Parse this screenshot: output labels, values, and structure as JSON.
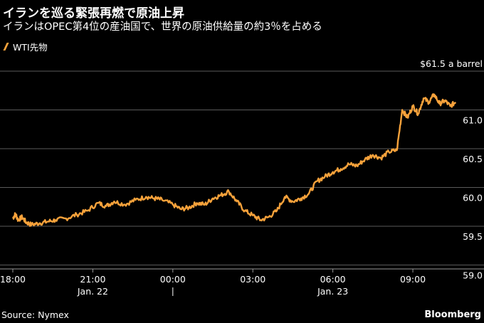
{
  "header": {
    "title": "イランを巡る緊張再燃で原油上昇",
    "subtitle": "イランはOPEC第4位の産油国で、世界の原油供給量の約3％を占める"
  },
  "legend": {
    "label": "WTI先物"
  },
  "footer": {
    "source": "Source: Nymex",
    "brand": "Bloomberg"
  },
  "colors": {
    "line": "#f7a23b",
    "grid": "#5a5a5a",
    "background": "#000000"
  },
  "chart_data": {
    "type": "line",
    "title": "イランを巡る緊張再燃で原油上昇",
    "ylabel": "",
    "unit_label": "$61.5 a barrel",
    "ylim": [
      58.95,
      61.5
    ],
    "yticks": [
      59.0,
      59.5,
      60.0,
      60.5,
      61.0
    ],
    "ytick_labels": [
      "59.0",
      "59.5",
      "60.0",
      "60.5",
      "61.0"
    ],
    "xlim": [
      0,
      16.6
    ],
    "xticks": [
      0,
      3,
      6,
      9,
      12,
      15
    ],
    "xtick_labels": [
      "18:00",
      "21:00",
      "00:00",
      "03:00",
      "06:00",
      "09:00"
    ],
    "date_labels": [
      {
        "x": 3,
        "label": "Jan. 22"
      },
      {
        "x": 12,
        "label": "Jan. 23"
      }
    ],
    "date_separator_x": 6,
    "series": [
      {
        "name": "WTI先物",
        "x": [
          0,
          0.1,
          0.2,
          0.35,
          0.5,
          0.7,
          1.0,
          1.3,
          1.6,
          2.0,
          2.4,
          2.8,
          3.2,
          3.5,
          3.8,
          4.2,
          4.6,
          5.0,
          5.3,
          5.6,
          6.0,
          6.3,
          6.6,
          6.9,
          7.2,
          7.5,
          7.8,
          8.1,
          8.4,
          8.7,
          9.0,
          9.3,
          9.6,
          9.9,
          10.2,
          10.5,
          10.8,
          11.1,
          11.4,
          11.7,
          12.0,
          12.3,
          12.6,
          12.9,
          13.2,
          13.5,
          13.8,
          14.1,
          14.4,
          14.6,
          14.8,
          15.0,
          15.2,
          15.4,
          15.6,
          15.8,
          16.0,
          16.2,
          16.4,
          16.6
        ],
        "values": [
          59.6,
          59.66,
          59.58,
          59.62,
          59.55,
          59.52,
          59.54,
          59.56,
          59.58,
          59.6,
          59.65,
          59.7,
          59.8,
          59.76,
          59.82,
          59.78,
          59.84,
          59.88,
          59.86,
          59.84,
          59.78,
          59.72,
          59.74,
          59.8,
          59.78,
          59.86,
          59.9,
          59.95,
          59.82,
          59.7,
          59.64,
          59.58,
          59.62,
          59.7,
          59.88,
          59.82,
          59.86,
          59.92,
          60.08,
          60.14,
          60.2,
          60.24,
          60.3,
          60.28,
          60.36,
          60.42,
          60.38,
          60.46,
          60.48,
          61.0,
          60.9,
          61.05,
          60.95,
          61.15,
          61.1,
          61.2,
          61.08,
          61.12,
          61.05,
          61.1
        ]
      }
    ],
    "grid": true,
    "legend_position": "top-left"
  }
}
